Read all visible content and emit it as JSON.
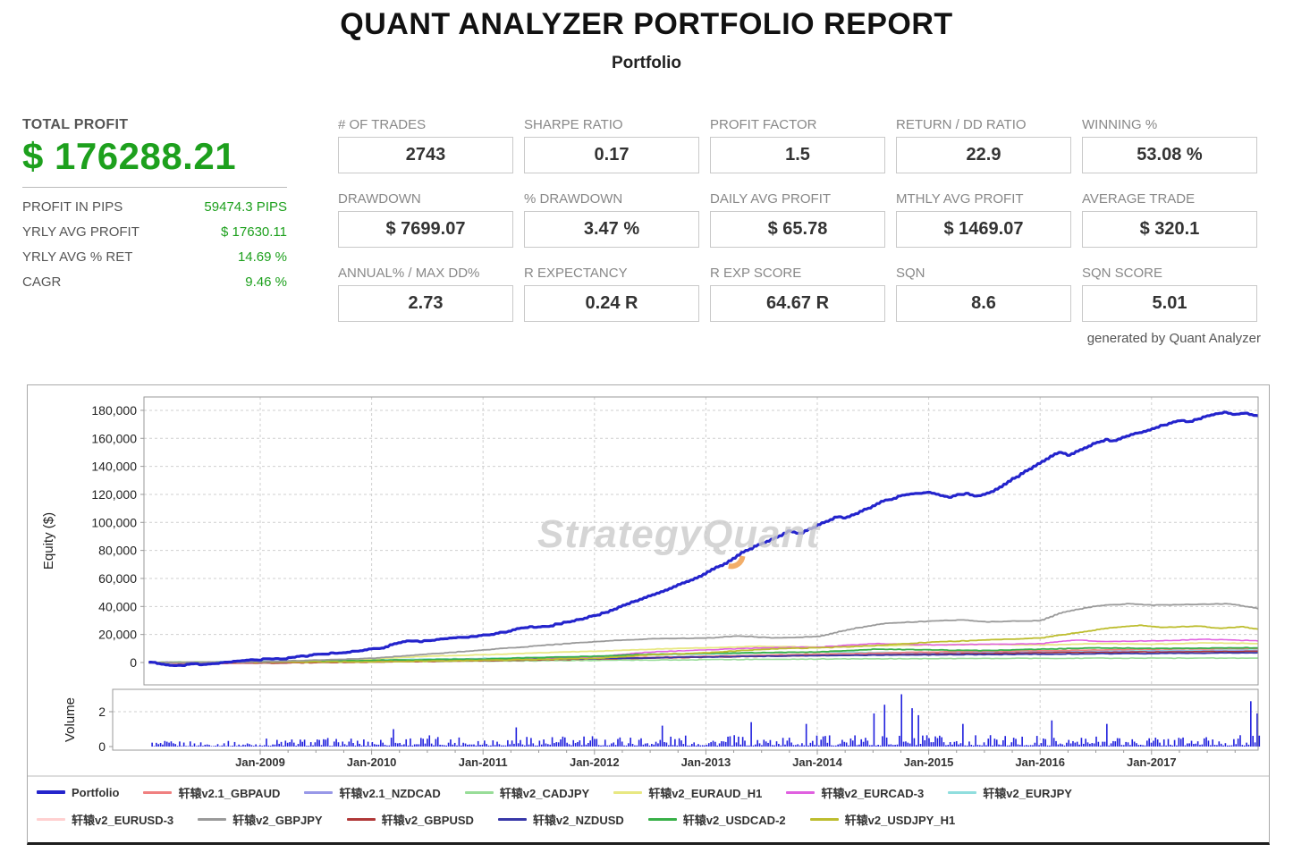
{
  "report": {
    "title": "QUANT ANALYZER PORTFOLIO REPORT",
    "subtitle": "Portfolio",
    "generated_by": "generated by Quant Analyzer"
  },
  "summary": {
    "total_profit_label": "TOTAL PROFIT",
    "total_profit_value": "$ 176288.21",
    "rows": [
      {
        "label": "PROFIT IN PIPS",
        "value": "59474.3 PIPS"
      },
      {
        "label": "YRLY AVG PROFIT",
        "value": "$ 17630.11"
      },
      {
        "label": "YRLY AVG % RET",
        "value": "14.69 %"
      },
      {
        "label": "CAGR",
        "value": "9.46 %"
      }
    ]
  },
  "stats_grid": [
    [
      {
        "label": "# OF TRADES",
        "value": "2743"
      },
      {
        "label": "SHARPE RATIO",
        "value": "0.17"
      },
      {
        "label": "PROFIT FACTOR",
        "value": "1.5"
      },
      {
        "label": "RETURN / DD RATIO",
        "value": "22.9"
      },
      {
        "label": "WINNING %",
        "value": "53.08 %"
      }
    ],
    [
      {
        "label": "DRAWDOWN",
        "value": "$ 7699.07"
      },
      {
        "label": "% DRAWDOWN",
        "value": "3.47 %"
      },
      {
        "label": "DAILY AVG PROFIT",
        "value": "$ 65.78"
      },
      {
        "label": "MTHLY AVG PROFIT",
        "value": "$ 1469.07"
      },
      {
        "label": "AVERAGE TRADE",
        "value": "$ 320.1"
      }
    ],
    [
      {
        "label": "ANNUAL% / MAX DD%",
        "value": "2.73"
      },
      {
        "label": "R EXPECTANCY",
        "value": "0.24 R"
      },
      {
        "label": "R EXP SCORE",
        "value": "64.67 R"
      },
      {
        "label": "SQN",
        "value": "8.6"
      },
      {
        "label": "SQN SCORE",
        "value": "5.01"
      }
    ]
  ],
  "colors": {
    "profit_green": "#1da01d",
    "portfolio_blue": "#2424cc",
    "grid_line": "#cfcfcf",
    "axis_border": "#999999",
    "volume_blue": "#2020dd"
  },
  "chart_data": {
    "type": "line",
    "watermark": "StrategyQuant",
    "ylabel": "Equity ($)",
    "volume_label": "Volume",
    "y_ticks": [
      0,
      20000,
      40000,
      60000,
      80000,
      100000,
      120000,
      140000,
      160000,
      180000
    ],
    "volume_ticks": [
      0,
      2
    ],
    "x_tick_years": [
      2009,
      2010,
      2011,
      2012,
      2013,
      2014,
      2015,
      2016,
      2017
    ],
    "x_tick_labels": [
      "Jan-2009",
      "Jan-2010",
      "Jan-2011",
      "Jan-2012",
      "Jan-2013",
      "Jan-2014",
      "Jan-2015",
      "Jan-2016",
      "Jan-2017"
    ],
    "x_range": [
      2008.0,
      2018.05
    ],
    "legend_rows": [
      [
        0,
        1,
        2,
        3,
        4,
        5,
        6
      ],
      [
        7,
        8,
        9,
        10,
        11,
        12
      ]
    ],
    "draw_order": [
      7,
      6,
      2,
      1,
      3,
      4,
      9,
      10,
      5,
      11,
      12,
      8,
      0
    ],
    "series": [
      {
        "name": "Portfolio",
        "color": "#2424cc",
        "width": 3.2,
        "monthly_start": 2008.0,
        "values": [
          0,
          -500,
          -1500,
          -2200,
          -1600,
          -1000,
          -1400,
          -600,
          200,
          800,
          1200,
          1800,
          2200,
          2800,
          2400,
          3200,
          4000,
          4800,
          5600,
          6200,
          6800,
          7400,
          8000,
          8800,
          9500,
          10500,
          12500,
          14500,
          15500,
          15000,
          15800,
          16400,
          17000,
          17600,
          18200,
          18800,
          19500,
          20500,
          21500,
          23000,
          24500,
          25500,
          25000,
          26000,
          27500,
          29000,
          30500,
          32000,
          33500,
          35500,
          38000,
          40500,
          43000,
          45500,
          48000,
          50500,
          53000,
          55500,
          58000,
          61000,
          64000,
          67500,
          71000,
          75000,
          79000,
          82000,
          85000,
          88000,
          91000,
          94000,
          92000,
          95000,
          98000,
          101000,
          104000,
          103000,
          106000,
          109000,
          112000,
          115000,
          117000,
          119000,
          120000,
          121000,
          121500,
          120000,
          118000,
          119500,
          121000,
          118500,
          120000,
          123000,
          127000,
          131000,
          135000,
          139000,
          143000,
          147000,
          150000,
          148000,
          151000,
          154000,
          157000,
          159000,
          158000,
          161000,
          163000,
          165000,
          167000,
          169000,
          171000,
          173000,
          172000,
          174000,
          176000,
          177500,
          178500,
          177000,
          178000,
          176300
        ]
      },
      {
        "name": "轩辕v2.1_GBPAUD",
        "color": "#f08080",
        "width": 1.6,
        "points": [
          [
            2008,
            0
          ],
          [
            2008.5,
            -800
          ],
          [
            2009,
            -300
          ],
          [
            2010,
            800
          ],
          [
            2011,
            1800
          ],
          [
            2012,
            3000
          ],
          [
            2013,
            4500
          ],
          [
            2014,
            6000
          ],
          [
            2015,
            7500
          ],
          [
            2016,
            8500
          ],
          [
            2017,
            9500
          ],
          [
            2017.95,
            10000
          ]
        ]
      },
      {
        "name": "轩辕v2.1_NZDCAD",
        "color": "#9898e8",
        "width": 1.6,
        "points": [
          [
            2008,
            0
          ],
          [
            2009,
            -300
          ],
          [
            2010,
            500
          ],
          [
            2011,
            1500
          ],
          [
            2012,
            2500
          ],
          [
            2013,
            4000
          ],
          [
            2014,
            5500
          ],
          [
            2015,
            6500
          ],
          [
            2016,
            7500
          ],
          [
            2017,
            8000
          ],
          [
            2017.95,
            8500
          ]
        ]
      },
      {
        "name": "轩辕v2_CADJPY",
        "color": "#98dd98",
        "width": 1.6,
        "points": [
          [
            2008,
            0
          ],
          [
            2010,
            500
          ],
          [
            2012,
            1500
          ],
          [
            2014,
            2500
          ],
          [
            2016,
            3000
          ],
          [
            2017.95,
            3200
          ]
        ]
      },
      {
        "name": "轩辕v2_EURAUD_H1",
        "color": "#e8e882",
        "width": 1.8,
        "points": [
          [
            2008,
            0
          ],
          [
            2009,
            500
          ],
          [
            2010,
            2500
          ],
          [
            2010.5,
            4500
          ],
          [
            2011,
            5500
          ],
          [
            2011.5,
            7000
          ],
          [
            2012,
            8000
          ],
          [
            2012.5,
            9500
          ],
          [
            2013,
            10500
          ],
          [
            2013.5,
            11500
          ],
          [
            2014,
            11000
          ],
          [
            2014.5,
            12000
          ],
          [
            2015,
            12500
          ],
          [
            2015.5,
            13000
          ],
          [
            2016,
            12500
          ],
          [
            2016.5,
            13500
          ],
          [
            2017,
            13000
          ],
          [
            2017.5,
            14000
          ],
          [
            2017.95,
            13500
          ]
        ]
      },
      {
        "name": "轩辕v2_EURCAD-3",
        "color": "#e060e0",
        "width": 1.6,
        "points": [
          [
            2008,
            0
          ],
          [
            2009,
            300
          ],
          [
            2010,
            1000
          ],
          [
            2011,
            2500
          ],
          [
            2012,
            4000
          ],
          [
            2012.5,
            7500
          ],
          [
            2013,
            9000
          ],
          [
            2013.5,
            10500
          ],
          [
            2014,
            11000
          ],
          [
            2014.5,
            13500
          ],
          [
            2015,
            12500
          ],
          [
            2015.5,
            13000
          ],
          [
            2016,
            13500
          ],
          [
            2016.3,
            16000
          ],
          [
            2016.6,
            15000
          ],
          [
            2017,
            15500
          ],
          [
            2017.5,
            16500
          ],
          [
            2017.95,
            15500
          ]
        ]
      },
      {
        "name": "轩辕v2_EURJPY",
        "color": "#90dede",
        "width": 1.6,
        "points": [
          [
            2008,
            0
          ],
          [
            2009,
            800
          ],
          [
            2010,
            2000
          ],
          [
            2011,
            3000
          ],
          [
            2012,
            4500
          ],
          [
            2013,
            6000
          ],
          [
            2014,
            7500
          ],
          [
            2015,
            7000
          ],
          [
            2016,
            8000
          ],
          [
            2017,
            8500
          ],
          [
            2017.95,
            9000
          ]
        ]
      },
      {
        "name": "轩辕v2_EURUSD-3",
        "color": "#ffd0d0",
        "width": 1.6,
        "points": [
          [
            2008,
            0
          ],
          [
            2009,
            400
          ],
          [
            2010,
            1200
          ],
          [
            2011,
            2200
          ],
          [
            2012,
            3200
          ],
          [
            2013,
            4200
          ],
          [
            2014,
            5200
          ],
          [
            2015,
            6200
          ],
          [
            2016,
            7200
          ],
          [
            2017,
            8200
          ],
          [
            2017.95,
            8700
          ]
        ]
      },
      {
        "name": "轩辕v2_GBPJPY",
        "color": "#9a9a9a",
        "width": 1.8,
        "points": [
          [
            2008,
            0
          ],
          [
            2009,
            500
          ],
          [
            2010,
            3000
          ],
          [
            2010.5,
            6000
          ],
          [
            2011,
            9000
          ],
          [
            2011.5,
            12000
          ],
          [
            2012,
            15000
          ],
          [
            2012.5,
            17000
          ],
          [
            2013,
            17500
          ],
          [
            2013.3,
            19000
          ],
          [
            2013.6,
            17500
          ],
          [
            2014,
            18500
          ],
          [
            2014.3,
            24000
          ],
          [
            2014.6,
            28000
          ],
          [
            2015,
            29500
          ],
          [
            2015.3,
            30500
          ],
          [
            2015.5,
            29000
          ],
          [
            2016,
            30000
          ],
          [
            2016.2,
            36000
          ],
          [
            2016.5,
            40500
          ],
          [
            2016.8,
            42000
          ],
          [
            2017,
            41000
          ],
          [
            2017.4,
            41500
          ],
          [
            2017.7,
            42000
          ],
          [
            2017.95,
            38500
          ]
        ]
      },
      {
        "name": "轩辕v2_GBPUSD",
        "color": "#b03838",
        "width": 1.6,
        "points": [
          [
            2008,
            0
          ],
          [
            2009,
            -500
          ],
          [
            2010,
            300
          ],
          [
            2011,
            1200
          ],
          [
            2012,
            2500
          ],
          [
            2013,
            3800
          ],
          [
            2014,
            5000
          ],
          [
            2015,
            6000
          ],
          [
            2016,
            7000
          ],
          [
            2017,
            7500
          ],
          [
            2017.95,
            8000
          ]
        ]
      },
      {
        "name": "轩辕v2_NZDUSD",
        "color": "#3838a8",
        "width": 1.8,
        "points": [
          [
            2008,
            0
          ],
          [
            2009,
            300
          ],
          [
            2010,
            1000
          ],
          [
            2011,
            1800
          ],
          [
            2012,
            2800
          ],
          [
            2013,
            4000
          ],
          [
            2014,
            5000
          ],
          [
            2015,
            5500
          ],
          [
            2016,
            6000
          ],
          [
            2017,
            6500
          ],
          [
            2017.95,
            7000
          ]
        ]
      },
      {
        "name": "轩辕v2_USDCAD-2",
        "color": "#38b048",
        "width": 1.8,
        "points": [
          [
            2008,
            0
          ],
          [
            2009,
            500
          ],
          [
            2010,
            1500
          ],
          [
            2011,
            2500
          ],
          [
            2012,
            4500
          ],
          [
            2012.5,
            6000
          ],
          [
            2013,
            6500
          ],
          [
            2014,
            7500
          ],
          [
            2014.5,
            9500
          ],
          [
            2015,
            9000
          ],
          [
            2015.5,
            8500
          ],
          [
            2016,
            9500
          ],
          [
            2016.5,
            10500
          ],
          [
            2017,
            10000
          ],
          [
            2017.95,
            10500
          ]
        ]
      },
      {
        "name": "轩辕v2_USDJPY_H1",
        "color": "#bdbd2e",
        "width": 1.8,
        "points": [
          [
            2008,
            0
          ],
          [
            2010,
            500
          ],
          [
            2011,
            1500
          ],
          [
            2012,
            3000
          ],
          [
            2012.5,
            5500
          ],
          [
            2013,
            7000
          ],
          [
            2013.5,
            9500
          ],
          [
            2014,
            10500
          ],
          [
            2014.5,
            12000
          ],
          [
            2015,
            14500
          ],
          [
            2015.5,
            16000
          ],
          [
            2016,
            17500
          ],
          [
            2016.3,
            21000
          ],
          [
            2016.6,
            24500
          ],
          [
            2016.9,
            26500
          ],
          [
            2017.1,
            25000
          ],
          [
            2017.4,
            26000
          ],
          [
            2017.6,
            24500
          ],
          [
            2017.8,
            25500
          ],
          [
            2017.95,
            24000
          ]
        ]
      }
    ],
    "volume": {
      "color": "#2020dd",
      "spikes": [
        [
          2010.2,
          1.0
        ],
        [
          2011.3,
          1.1
        ],
        [
          2012.6,
          1.2
        ],
        [
          2013.4,
          1.4
        ],
        [
          2013.9,
          1.3
        ],
        [
          2014.5,
          1.9
        ],
        [
          2014.6,
          2.4
        ],
        [
          2014.75,
          3.0
        ],
        [
          2014.85,
          2.2
        ],
        [
          2014.9,
          1.8
        ],
        [
          2015.3,
          1.3
        ],
        [
          2016.1,
          1.5
        ],
        [
          2016.6,
          1.3
        ],
        [
          2017.9,
          2.6
        ],
        [
          2017.95,
          1.9
        ]
      ]
    }
  }
}
